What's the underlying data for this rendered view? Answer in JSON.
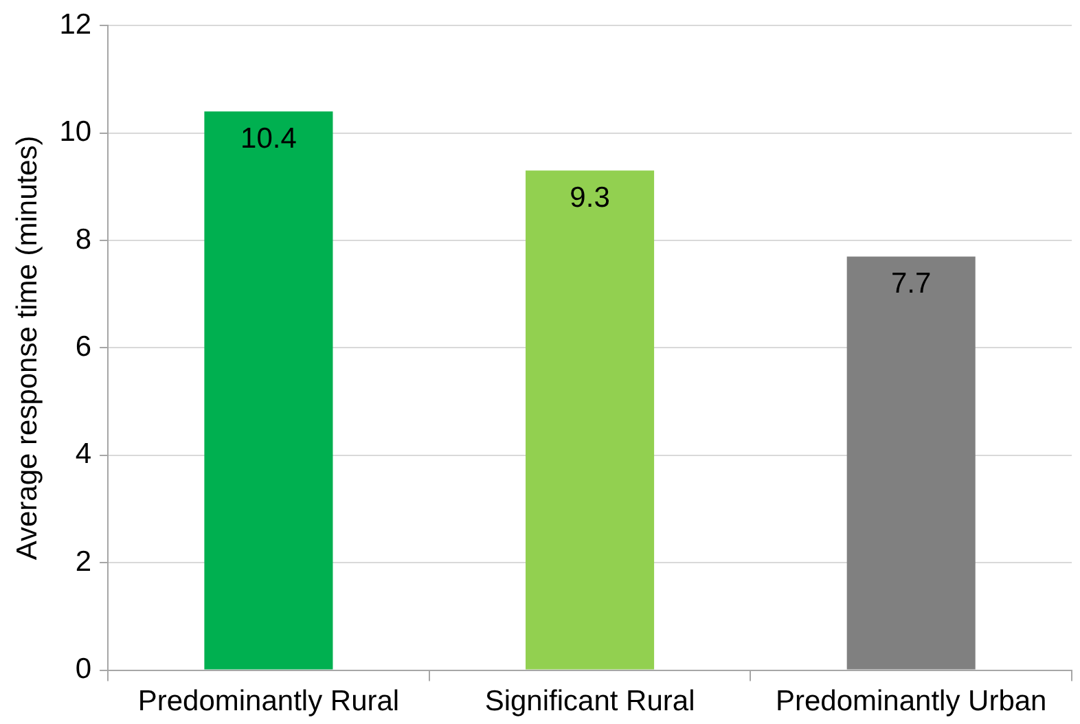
{
  "chart_data": {
    "type": "bar",
    "ylabel": "Average response time (minutes)",
    "categories": [
      "Predominantly Rural",
      "Significant Rural",
      "Predominantly Urban"
    ],
    "values": [
      10.4,
      9.3,
      7.7
    ],
    "colors": [
      "#00b050",
      "#92d050",
      "#808080"
    ],
    "ylim": [
      0,
      12
    ],
    "yticks": [
      0,
      2,
      4,
      6,
      8,
      10,
      12
    ],
    "grid": "y",
    "data_labels": true
  }
}
